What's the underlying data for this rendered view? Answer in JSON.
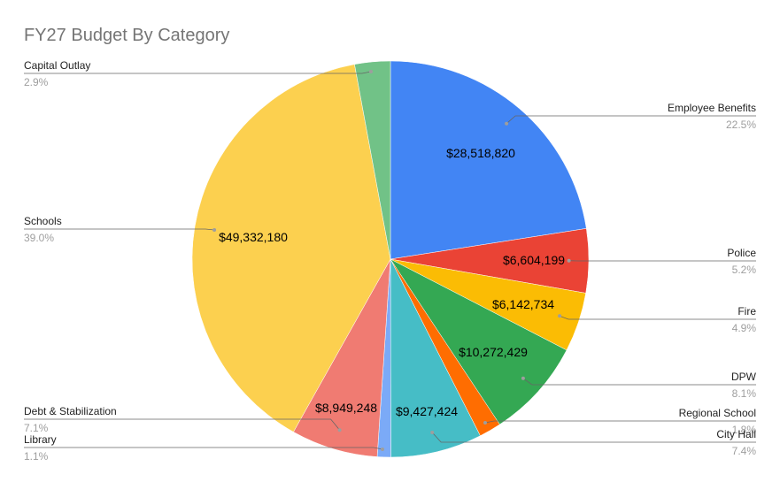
{
  "chart_data": {
    "type": "pie",
    "title": "FY27 Budget By Category",
    "slices": [
      {
        "label": "Employee Benefits",
        "value": 28518820,
        "value_label": "$28,518,820",
        "percent_label": "22.5%",
        "color": "#4285f4"
      },
      {
        "label": "Police",
        "value": 6604199,
        "value_label": "$6,604,199",
        "percent_label": "5.2%",
        "color": "#ea4335"
      },
      {
        "label": "Fire",
        "value": 6142734,
        "value_label": "$6,142,734",
        "percent_label": "4.9%",
        "color": "#fbbc04"
      },
      {
        "label": "DPW",
        "value": 10272429,
        "value_label": "$10,272,429",
        "percent_label": "8.1%",
        "color": "#34a853"
      },
      {
        "label": "Regional School",
        "value": 2290000,
        "value_label": "",
        "percent_label": "1.8%",
        "color": "#ff6d01"
      },
      {
        "label": "City Hall",
        "value": 9427424,
        "value_label": "$9,427,424",
        "percent_label": "7.4%",
        "color": "#46bdc6"
      },
      {
        "label": "Library",
        "value": 1390000,
        "value_label": "",
        "percent_label": "1.1%",
        "color": "#7baaf7"
      },
      {
        "label": "Debt & Stabilization",
        "value": 8949248,
        "value_label": "$8,949,248",
        "percent_label": "7.1%",
        "color": "#f07b72"
      },
      {
        "label": "Schools",
        "value": 49332180,
        "value_label": "$49,332,180",
        "percent_label": "39.0%",
        "color": "#fcd04f"
      },
      {
        "label": "Capital Outlay",
        "value": 3670000,
        "value_label": "",
        "percent_label": "2.9%",
        "color": "#71c287"
      }
    ],
    "legend": "labels with leader lines"
  }
}
